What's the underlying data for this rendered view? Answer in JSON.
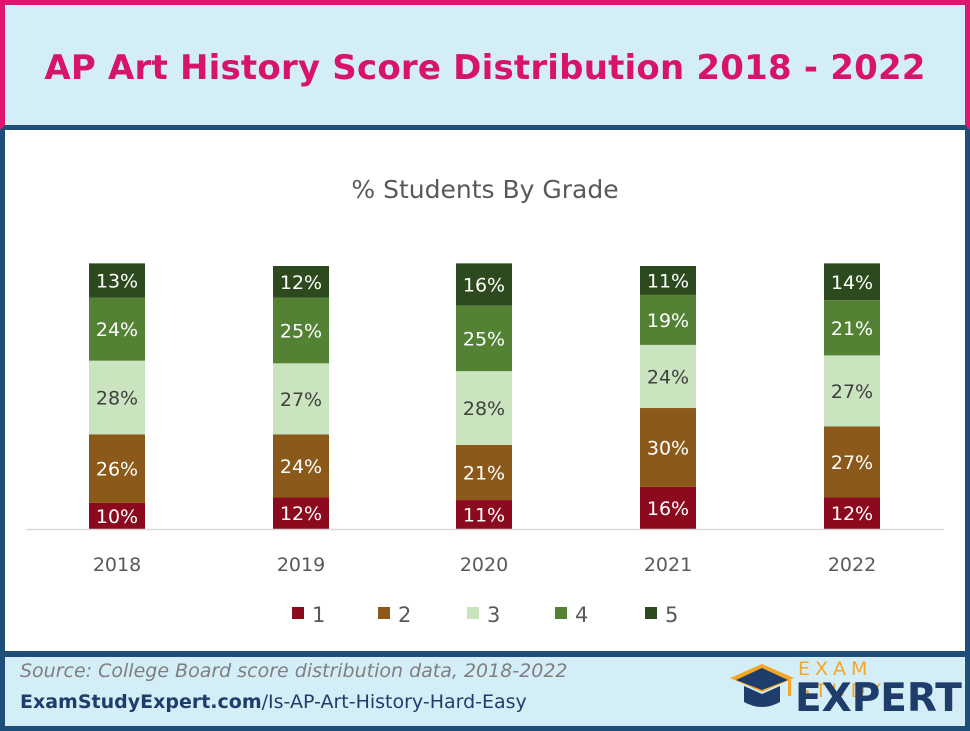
{
  "header": {
    "title": "AP Art History Score Distribution 2018 - 2022"
  },
  "footer": {
    "source": "Source: College Board score distribution data, 2018-2022",
    "url_bold": "ExamStudyExpert.com",
    "url_rest": "/Is-AP-Art-History-Hard-Easy",
    "logo_top": "EXAM STUDY",
    "logo_main": "EXPERT"
  },
  "colors": {
    "header_bg": "#d4eef8",
    "header_border": "#e0156f",
    "title": "#d8136a",
    "frame": "#1f4e79",
    "grade_1": "#8b0a1e",
    "grade_2": "#8b5a1b",
    "grade_3": "#c9e4bf",
    "grade_4": "#548235",
    "grade_5": "#2d4a1e",
    "logo_accent": "#f5a623"
  },
  "chart_data": {
    "type": "bar",
    "stacked": true,
    "title": "% Students By Grade",
    "categories": [
      "2018",
      "2019",
      "2020",
      "2021",
      "2022"
    ],
    "series": [
      {
        "name": "1",
        "color": "#8b0a1e",
        "label_color": "#ffffff",
        "values": [
          10,
          12,
          11,
          16,
          12
        ]
      },
      {
        "name": "2",
        "color": "#8b5a1b",
        "label_color": "#ffffff",
        "values": [
          26,
          24,
          21,
          30,
          27
        ]
      },
      {
        "name": "3",
        "color": "#c9e4bf",
        "label_color": "#404040",
        "values": [
          28,
          27,
          28,
          24,
          27
        ]
      },
      {
        "name": "4",
        "color": "#548235",
        "label_color": "#ffffff",
        "values": [
          24,
          25,
          25,
          19,
          21
        ]
      },
      {
        "name": "5",
        "color": "#2d4a1e",
        "label_color": "#ffffff",
        "values": [
          13,
          12,
          16,
          11,
          14
        ]
      }
    ],
    "value_suffix": "%",
    "legend": "bottom",
    "grid": false,
    "y_axis_visible": false
  }
}
